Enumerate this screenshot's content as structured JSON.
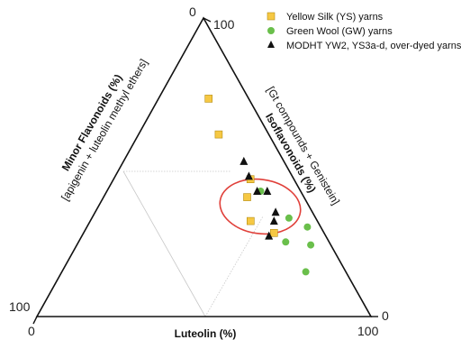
{
  "chart_data": {
    "type": "scatter",
    "subtype": "ternary",
    "axes": {
      "luteolin": {
        "title": "Luteolin (%)",
        "range": [
          0,
          100
        ],
        "tick_labels": [
          "0",
          "100"
        ]
      },
      "isoflavonoids": {
        "title": "Isoflavonoids (%)",
        "subtitle": "[Gt compounds + Genistein]",
        "range": [
          0,
          100
        ],
        "tick_labels": [
          "0",
          "100"
        ]
      },
      "minor_flavonoids": {
        "title": "Minor Flavonoids (%)",
        "subtitle": "[apigenin + luteolin methyl ethers]",
        "range": [
          0,
          100
        ],
        "tick_labels": [
          "0",
          "100"
        ]
      }
    },
    "legend_position": "top-right",
    "series": [
      {
        "name": "Yellow Silk (YS) yarns",
        "color": "#f6c843",
        "marker": "square",
        "points": [
          {
            "luteolin": 15,
            "isoflavonoids": 73,
            "minor_flavonoids": 12
          },
          {
            "luteolin": 24,
            "isoflavonoids": 61,
            "minor_flavonoids": 15
          },
          {
            "luteolin": 41,
            "isoflavonoids": 46,
            "minor_flavonoids": 13
          },
          {
            "luteolin": 43,
            "isoflavonoids": 40,
            "minor_flavonoids": 17
          },
          {
            "luteolin": 48,
            "isoflavonoids": 32,
            "minor_flavonoids": 20
          },
          {
            "luteolin": 57,
            "isoflavonoids": 28,
            "minor_flavonoids": 15
          }
        ]
      },
      {
        "name": "Green Wool (GW) yarns",
        "color": "#6abf4b",
        "marker": "circle",
        "points": [
          {
            "luteolin": 46,
            "isoflavonoids": 42,
            "minor_flavonoids": 12
          },
          {
            "luteolin": 59,
            "isoflavonoids": 33,
            "minor_flavonoids": 8
          },
          {
            "luteolin": 66,
            "isoflavonoids": 30,
            "minor_flavonoids": 4
          },
          {
            "luteolin": 62,
            "isoflavonoids": 25,
            "minor_flavonoids": 13
          },
          {
            "luteolin": 70,
            "isoflavonoids": 24,
            "minor_flavonoids": 6
          },
          {
            "luteolin": 73,
            "isoflavonoids": 15,
            "minor_flavonoids": 12
          }
        ]
      },
      {
        "name": "MODHT YW2, YS3a-d, over-dyed yarns",
        "color": "#111111",
        "marker": "triangle",
        "points": [
          {
            "luteolin": 36,
            "isoflavonoids": 52,
            "minor_flavonoids": 12
          },
          {
            "luteolin": 40,
            "isoflavonoids": 47,
            "minor_flavonoids": 13
          },
          {
            "luteolin": 45,
            "isoflavonoids": 42,
            "minor_flavonoids": 13
          },
          {
            "luteolin": 48,
            "isoflavonoids": 42,
            "minor_flavonoids": 10
          },
          {
            "luteolin": 54,
            "isoflavonoids": 35,
            "minor_flavonoids": 11
          },
          {
            "luteolin": 55,
            "isoflavonoids": 32,
            "minor_flavonoids": 13
          },
          {
            "luteolin": 56,
            "isoflavonoids": 27,
            "minor_flavonoids": 17
          }
        ]
      }
    ],
    "annotations": [
      {
        "type": "ellipse",
        "color": "#e0403a",
        "note": "circled cluster"
      }
    ]
  }
}
